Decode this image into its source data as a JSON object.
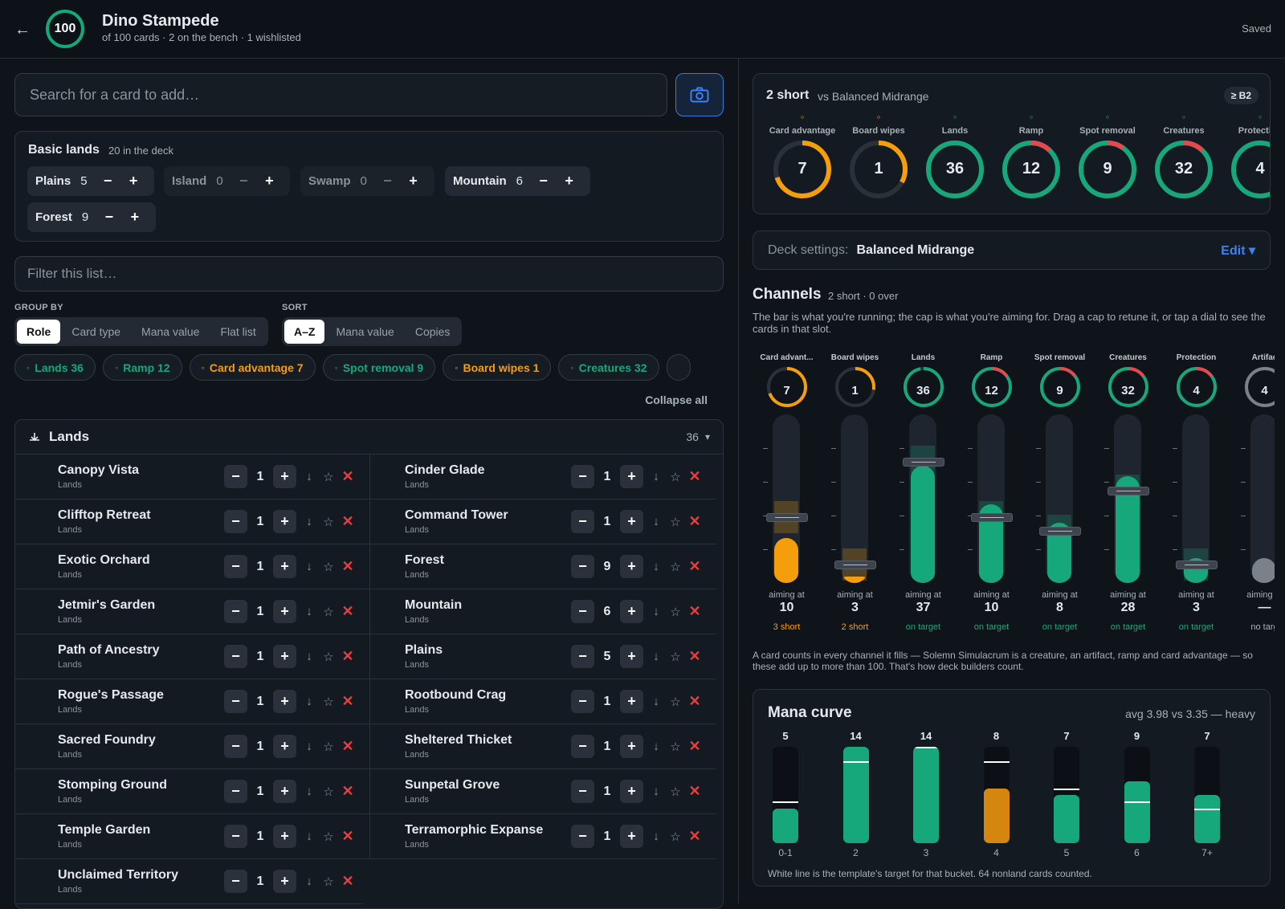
{
  "header": {
    "back": "←",
    "count": "100",
    "title": "Dino Stampede",
    "subtitle": "of 100 cards · 2 on the bench · 1 wishlisted",
    "status": "Saved"
  },
  "search": {
    "placeholder": "Search for a card to add…"
  },
  "basic": {
    "title": "Basic lands",
    "count": "20 in the deck",
    "lands": [
      {
        "name": "Plains",
        "n": "5"
      },
      {
        "name": "Island",
        "n": "0"
      },
      {
        "name": "Swamp",
        "n": "0"
      },
      {
        "name": "Mountain",
        "n": "6"
      },
      {
        "name": "Forest",
        "n": "9"
      }
    ],
    "minus": "−",
    "plus": "+"
  },
  "filter": {
    "placeholder": "Filter this list…"
  },
  "group": {
    "label": "GROUP BY",
    "options": [
      "Role",
      "Card type",
      "Mana value",
      "Flat list"
    ]
  },
  "sort": {
    "label": "SORT",
    "options": [
      "A–Z",
      "Mana value",
      "Copies"
    ]
  },
  "chips": [
    {
      "label": "Lands 36",
      "icon": "land-icon",
      "color": "#16a77a"
    },
    {
      "label": "Ramp 12",
      "icon": "ramp-icon",
      "color": "#16a77a"
    },
    {
      "label": "Card advantage 7",
      "icon": "cards-icon",
      "color": "#f59e0b"
    },
    {
      "label": "Spot removal 9",
      "icon": "removal-icon",
      "color": "#16a77a"
    },
    {
      "label": "Board wipes 1",
      "icon": "wipe-icon",
      "color": "#f59e0b"
    },
    {
      "label": "Creatures 32",
      "icon": "creature-icon",
      "color": "#16a77a"
    }
  ],
  "collapse": "Collapse all",
  "section": {
    "title": "Lands",
    "count": "36",
    "caret": "▾"
  },
  "cards": [
    {
      "name": "Canopy Vista",
      "type": "Lands",
      "qty": "1"
    },
    {
      "name": "Cinder Glade",
      "type": "Lands",
      "qty": "1"
    },
    {
      "name": "Clifftop Retreat",
      "type": "Lands",
      "qty": "1"
    },
    {
      "name": "Command Tower",
      "type": "Lands",
      "qty": "1"
    },
    {
      "name": "Exotic Orchard",
      "type": "Lands",
      "qty": "1"
    },
    {
      "name": "Forest",
      "type": "Lands",
      "qty": "9"
    },
    {
      "name": "Jetmir's Garden",
      "type": "Lands",
      "qty": "1"
    },
    {
      "name": "Mountain",
      "type": "Lands",
      "qty": "6"
    },
    {
      "name": "Path of Ancestry",
      "type": "Lands",
      "qty": "1"
    },
    {
      "name": "Plains",
      "type": "Lands",
      "qty": "5"
    },
    {
      "name": "Rogue's Passage",
      "type": "Lands",
      "qty": "1"
    },
    {
      "name": "Rootbound Crag",
      "type": "Lands",
      "qty": "1"
    },
    {
      "name": "Sacred Foundry",
      "type": "Lands",
      "qty": "1"
    },
    {
      "name": "Sheltered Thicket",
      "type": "Lands",
      "qty": "1"
    },
    {
      "name": "Stomping Ground",
      "type": "Lands",
      "qty": "1"
    },
    {
      "name": "Sunpetal Grove",
      "type": "Lands",
      "qty": "1"
    },
    {
      "name": "Temple Garden",
      "type": "Lands",
      "qty": "1"
    },
    {
      "name": "Terramorphic Expanse",
      "type": "Lands",
      "qty": "1"
    },
    {
      "name": "Unclaimed Territory",
      "type": "Lands",
      "qty": "1"
    }
  ],
  "card_icons": {
    "minus": "−",
    "plus": "+",
    "down": "↓",
    "star": "☆",
    "remove": "✕"
  },
  "coverage": {
    "title": "2 short",
    "vs": "vs Balanced Midrange",
    "badge": "≥ B2",
    "items": [
      {
        "label": "Card advantage",
        "value": "7",
        "frac": 0.7,
        "color": "#f59e0b"
      },
      {
        "label": "Board wipes",
        "value": "1",
        "frac": 0.33,
        "color": "#f59e0b"
      },
      {
        "label": "Lands",
        "value": "36",
        "frac": 1,
        "color": "#16a77a"
      },
      {
        "label": "Ramp",
        "value": "12",
        "frac": 1,
        "color": "#16a77a",
        "over": 0.12
      },
      {
        "label": "Spot removal",
        "value": "9",
        "frac": 1,
        "color": "#16a77a",
        "over": 0.1
      },
      {
        "label": "Creatures",
        "value": "32",
        "frac": 1,
        "color": "#16a77a",
        "over": 0.12
      },
      {
        "label": "Protection",
        "value": "4",
        "frac": 1,
        "color": "#16a77a"
      }
    ]
  },
  "settings": {
    "label": "Deck settings:",
    "value": "Balanced Midrange",
    "edit": "Edit ▾"
  },
  "channels": {
    "title": "Channels",
    "sub": "2 short · 0 over",
    "desc": "The bar is what you're running; the cap is what you're aiming for. Drag a cap to retune it, or tap a dial to see the cards in that slot.",
    "aim_label": "aiming at",
    "items": [
      {
        "label": "Card advant...",
        "value": "7",
        "target": "10",
        "status": "3 short",
        "color": "#f59e0b",
        "fill": 0.27,
        "cap": 0.39
      },
      {
        "label": "Board wipes",
        "value": "1",
        "target": "3",
        "status": "2 short",
        "color": "#f59e0b",
        "fill": 0.03,
        "cap": 0.11
      },
      {
        "label": "Lands",
        "value": "36",
        "target": "37",
        "status": "on target",
        "color": "#16a77a",
        "fill": 0.7,
        "cap": 0.72
      },
      {
        "label": "Ramp",
        "value": "12",
        "target": "10",
        "status": "on target",
        "color": "#16a77a",
        "fill": 0.47,
        "cap": 0.39
      },
      {
        "label": "Spot removal",
        "value": "9",
        "target": "8",
        "status": "on target",
        "color": "#16a77a",
        "fill": 0.36,
        "cap": 0.31
      },
      {
        "label": "Creatures",
        "value": "32",
        "target": "28",
        "status": "on target",
        "color": "#16a77a",
        "fill": 0.64,
        "cap": 0.55
      },
      {
        "label": "Protection",
        "value": "4",
        "target": "3",
        "status": "on target",
        "color": "#16a77a",
        "fill": 0.15,
        "cap": 0.11
      },
      {
        "label": "Artifac",
        "value": "4",
        "target": "—",
        "status": "no targ",
        "color": "#7b8189",
        "fill": 0.15,
        "cap": null
      }
    ]
  },
  "footnote": "A card counts in every channel it fills — Solemn Simulacrum is a creature, an artifact, ramp and card advantage — so these add up to more than 100. That's how deck builders count.",
  "curve": {
    "title": "Mana curve",
    "avg": "avg 3.98 vs 3.35 — heavy",
    "note": "White line is the template's target for that bucket. 64 nonland cards counted.",
    "buckets": [
      {
        "k": "0-1",
        "v": "5",
        "frac": 0.36,
        "target": 0.43,
        "color": "#16a77a"
      },
      {
        "k": "2",
        "v": "14",
        "frac": 1,
        "target": 0.85,
        "color": "#16a77a"
      },
      {
        "k": "3",
        "v": "14",
        "frac": 1,
        "target": 1,
        "color": "#16a77a"
      },
      {
        "k": "4",
        "v": "8",
        "frac": 0.57,
        "target": 0.85,
        "color": "#d4860f"
      },
      {
        "k": "5",
        "v": "7",
        "frac": 0.5,
        "target": 0.57,
        "color": "#16a77a"
      },
      {
        "k": "6",
        "v": "9",
        "frac": 0.64,
        "target": 0.43,
        "color": "#16a77a"
      },
      {
        "k": "7+",
        "v": "7",
        "frac": 0.5,
        "target": 0.36,
        "color": "#16a77a"
      }
    ]
  }
}
